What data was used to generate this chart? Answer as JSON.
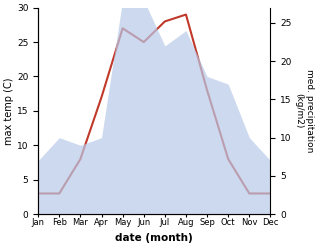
{
  "months": [
    "Jan",
    "Feb",
    "Mar",
    "Apr",
    "May",
    "Jun",
    "Jul",
    "Aug",
    "Sep",
    "Oct",
    "Nov",
    "Dec"
  ],
  "temperature": [
    3,
    3,
    8,
    17,
    27,
    25,
    28,
    29,
    18,
    8,
    3,
    3
  ],
  "precipitation": [
    7,
    10,
    9,
    10,
    28,
    28,
    22,
    24,
    18,
    17,
    10,
    7
  ],
  "temp_color": "#c0392b",
  "precip_color": "#b8c9e8",
  "precip_fill_alpha": 0.7,
  "temp_ylim": [
    0,
    30
  ],
  "precip_ylim": [
    0,
    27
  ],
  "precip_yticks": [
    0,
    5,
    10,
    15,
    20,
    25
  ],
  "temp_yticks": [
    0,
    5,
    10,
    15,
    20,
    25,
    30
  ],
  "xlabel": "date (month)",
  "ylabel_left": "max temp (C)",
  "ylabel_right": "med. precipitation\n(kg/m2)",
  "bg_color": "#ffffff",
  "line_width": 1.5
}
